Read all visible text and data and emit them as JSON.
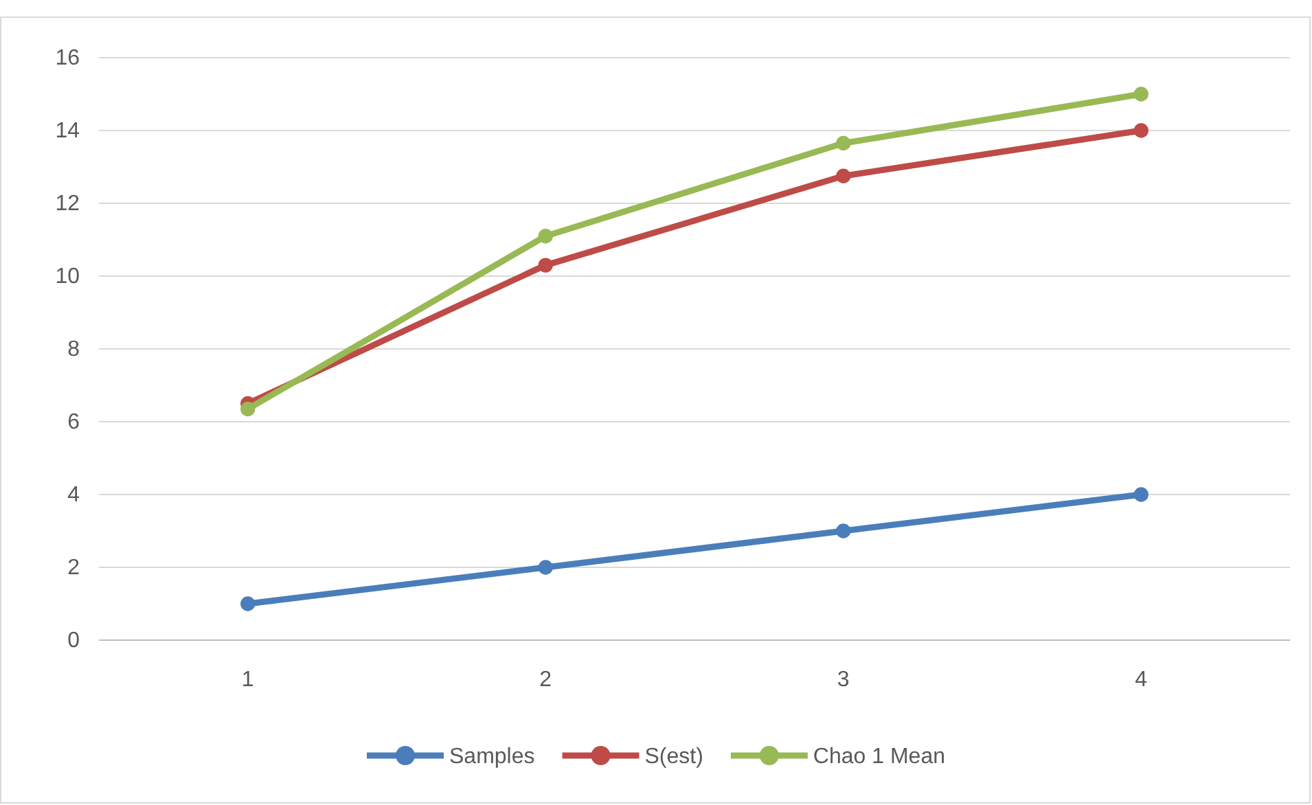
{
  "chart_data": {
    "type": "line",
    "categories": [
      "1",
      "2",
      "3",
      "4"
    ],
    "series": [
      {
        "name": "Samples",
        "color": "#4a7ebb",
        "values": [
          1,
          2,
          3,
          4
        ]
      },
      {
        "name": "S(est)",
        "color": "#be4b48",
        "values": [
          6.5,
          10.3,
          12.75,
          14
        ]
      },
      {
        "name": "Chao 1 Mean",
        "color": "#98b954",
        "values": [
          6.35,
          11.1,
          13.65,
          15
        ]
      }
    ],
    "ylim": [
      0,
      16
    ],
    "yticks": [
      0,
      2,
      4,
      6,
      8,
      10,
      12,
      14,
      16
    ],
    "grid": "y",
    "legend": "bottom",
    "marker": "circle",
    "line_style": "solid"
  }
}
